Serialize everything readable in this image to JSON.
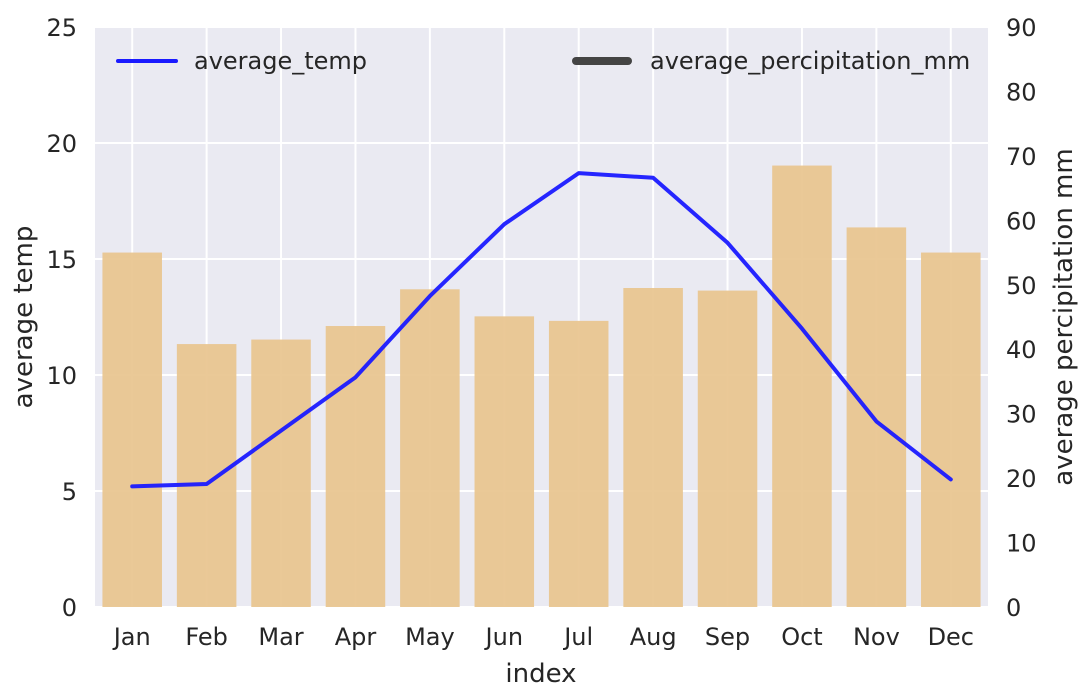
{
  "chart_data": {
    "type": "bar+line",
    "categories": [
      "Jan",
      "Feb",
      "Mar",
      "Apr",
      "May",
      "Jun",
      "Jul",
      "Aug",
      "Sep",
      "Oct",
      "Nov",
      "Dec"
    ],
    "xlabel": "index",
    "ylabel_left": "average temp",
    "ylabel_right": "average percipitation mm",
    "ylim_left": [
      0,
      25
    ],
    "ylim_right": [
      0,
      90
    ],
    "yticks_left": [
      0,
      5,
      10,
      15,
      20,
      25
    ],
    "yticks_right": [
      0,
      10,
      20,
      30,
      40,
      50,
      60,
      70,
      80,
      90
    ],
    "grid": true,
    "series": [
      {
        "name": "average_temp",
        "kind": "line",
        "axis": "left",
        "color": "#1a1aff",
        "values": [
          5.2,
          5.3,
          7.6,
          9.9,
          13.4,
          16.5,
          18.7,
          18.5,
          15.7,
          12.0,
          8.0,
          5.5
        ]
      },
      {
        "name": "average_percipitation_mm",
        "kind": "bar",
        "axis": "right",
        "color": "#e8c48e",
        "values": [
          55,
          40.8,
          41.5,
          43.6,
          49.3,
          45.1,
          44.4,
          49.5,
          49.1,
          68.5,
          58.9,
          55
        ]
      }
    ],
    "legend": [
      {
        "label": "average_temp",
        "color": "#1a1aff",
        "position": "top-left"
      },
      {
        "label": "average_percipitation_mm",
        "color": "#444444",
        "position": "top-right"
      }
    ],
    "background_color": "#eaeaf2"
  }
}
